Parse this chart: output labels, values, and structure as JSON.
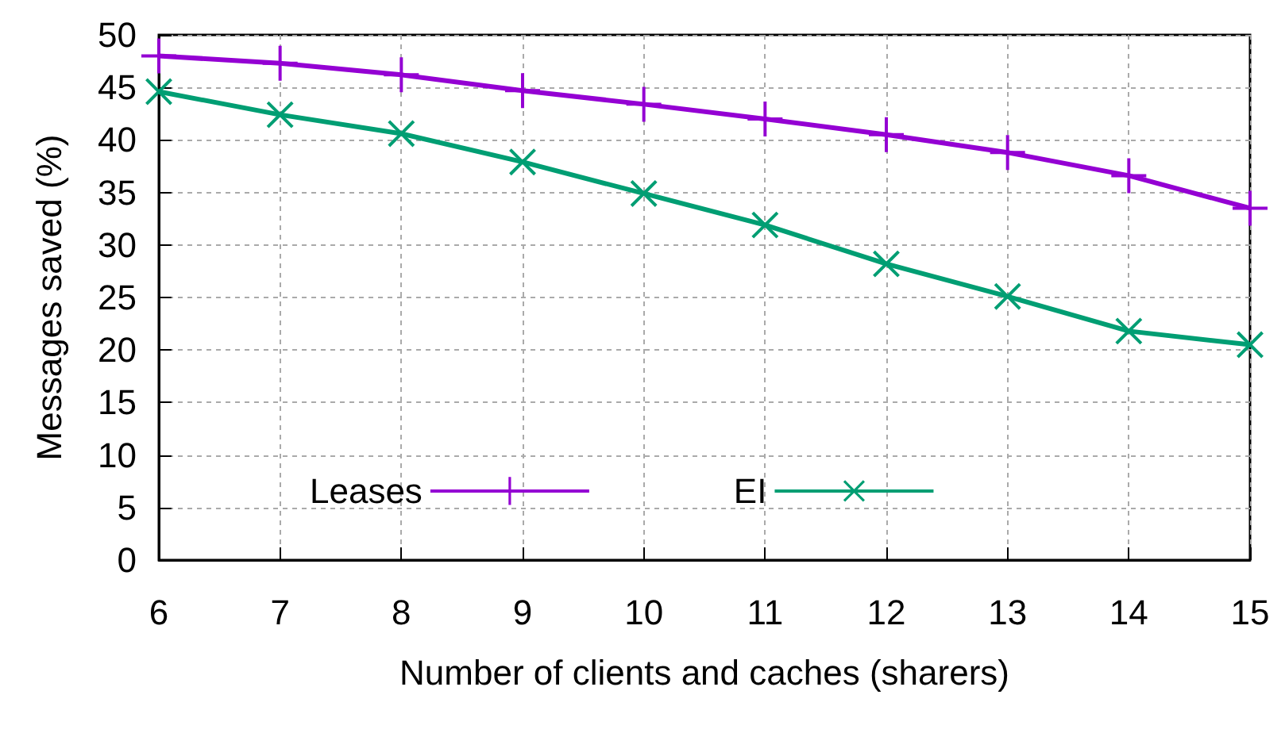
{
  "chart_data": {
    "type": "line",
    "xlabel": "Number of clients and caches (sharers)",
    "ylabel": "Messages saved (%)",
    "x": [
      6,
      7,
      8,
      9,
      10,
      11,
      12,
      13,
      14,
      15
    ],
    "series": [
      {
        "name": "Leases",
        "color": "#9400d3",
        "marker": "cross",
        "values": [
          48.0,
          47.3,
          46.2,
          44.7,
          43.4,
          42.0,
          40.5,
          38.8,
          36.6,
          33.5
        ]
      },
      {
        "name": "EI",
        "color": "#009e73",
        "marker": "cross",
        "values": [
          44.6,
          42.4,
          40.6,
          37.9,
          34.9,
          31.9,
          28.2,
          25.1,
          21.8,
          20.5
        ]
      }
    ],
    "xlim": [
      6,
      15
    ],
    "xticks": [
      6,
      7,
      8,
      9,
      10,
      11,
      12,
      13,
      14,
      15
    ],
    "ylim": [
      0,
      50
    ],
    "yticks": [
      0,
      5,
      10,
      15,
      20,
      25,
      30,
      35,
      40,
      45,
      50
    ],
    "grid": true,
    "legend": "bottom",
    "line_style": "solid"
  }
}
